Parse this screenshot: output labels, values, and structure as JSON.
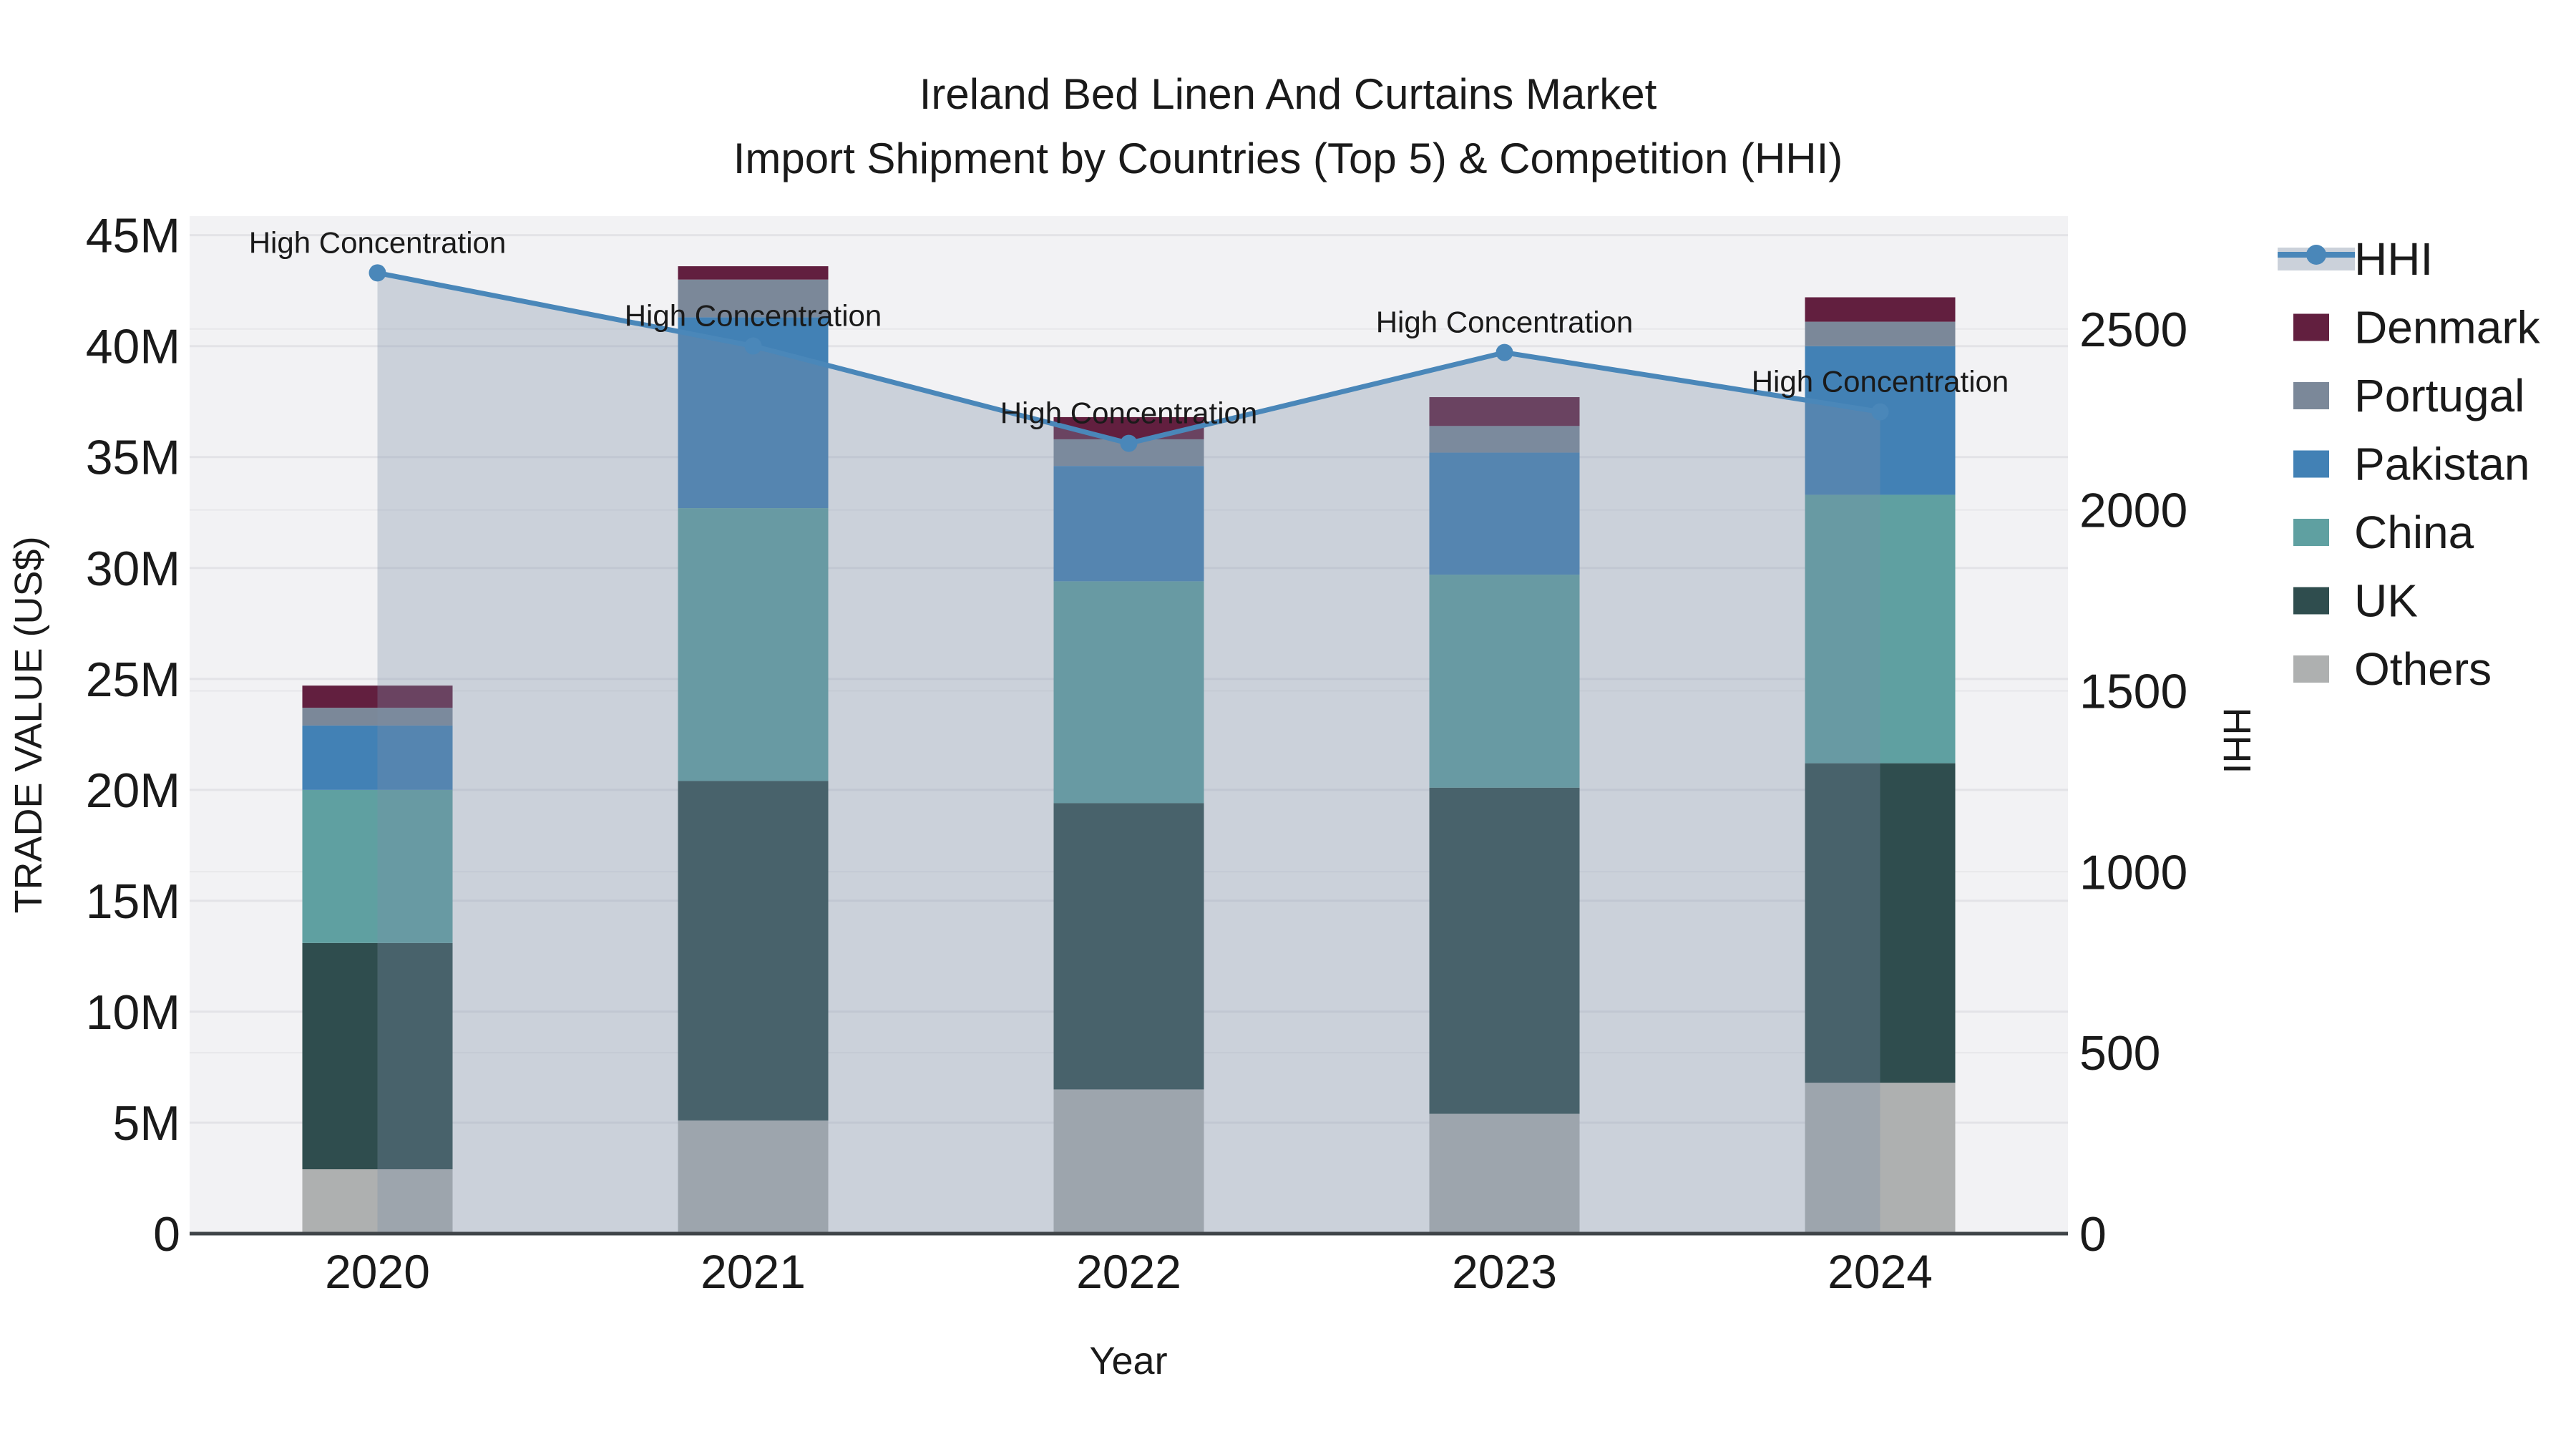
{
  "title": {
    "line1": "Ireland Bed Linen And Curtains Market",
    "line2": "Import Shipment by Countries (Top 5) & Competition (HHI)"
  },
  "axes": {
    "xlabel": "Year",
    "ylabel_left": "TRADE VALUE (US$)",
    "ylabel_right": "HHI",
    "y_left_tick_labels": [
      "0",
      "5M",
      "10M",
      "15M",
      "20M",
      "25M",
      "30M",
      "35M",
      "40M",
      "45M"
    ],
    "y_left_tick_values": [
      0,
      5,
      10,
      15,
      20,
      25,
      30,
      35,
      40,
      45
    ],
    "y_right_tick_labels": [
      "0",
      "500",
      "1000",
      "1500",
      "2000",
      "2500"
    ],
    "y_right_tick_values": [
      0,
      500,
      1000,
      1500,
      2000,
      2500
    ]
  },
  "chart_data": {
    "type": "bar",
    "subtype": "stacked-bars-with-line-overlay",
    "categories": [
      "2020",
      "2021",
      "2022",
      "2023",
      "2024"
    ],
    "value_unit_left": "Trade value, millions of US$",
    "series": [
      {
        "name": "Others",
        "color": "#aeb0b0",
        "values": [
          2.9,
          5.1,
          6.5,
          5.4,
          6.8
        ]
      },
      {
        "name": "UK",
        "color": "#2f4d4e",
        "values": [
          10.2,
          15.3,
          12.9,
          14.7,
          14.4
        ]
      },
      {
        "name": "China",
        "color": "#5fa0a1",
        "values": [
          6.9,
          12.3,
          10.0,
          9.6,
          12.1
        ]
      },
      {
        "name": "Pakistan",
        "color": "#4281b5",
        "values": [
          2.9,
          8.6,
          5.2,
          5.5,
          6.7
        ]
      },
      {
        "name": "Portugal",
        "color": "#7b8899",
        "values": [
          0.8,
          1.7,
          1.2,
          1.2,
          1.1
        ]
      },
      {
        "name": "Denmark",
        "color": "#621f3f",
        "values": [
          1.0,
          0.6,
          1.0,
          1.3,
          1.1
        ]
      }
    ],
    "stack_totals": [
      24.7,
      43.6,
      36.8,
      37.7,
      42.2
    ],
    "line": {
      "name": "HHI",
      "axis": "right",
      "color": "#4a87b9",
      "fill_color": "rgba(124,143,167,0.33)",
      "values": [
        2655,
        2453,
        2184,
        2435,
        2271
      ]
    },
    "annotations": [
      "High Concentration",
      "High Concentration",
      "High Concentration",
      "High Concentration",
      "High Concentration"
    ],
    "ylim_left": [
      0,
      45.86
    ],
    "ylim_right": [
      0,
      2812
    ],
    "grid": true,
    "legend_position": "right"
  },
  "legend": {
    "items": [
      {
        "label": "HHI",
        "type": "line",
        "color": "#4a87b9",
        "band_color": "#cbd1da"
      },
      {
        "label": "Denmark",
        "type": "swatch",
        "color": "#621f3f"
      },
      {
        "label": "Portugal",
        "type": "swatch",
        "color": "#7b8899"
      },
      {
        "label": "Pakistan",
        "type": "swatch",
        "color": "#4281b5"
      },
      {
        "label": "China",
        "type": "swatch",
        "color": "#5fa0a1"
      },
      {
        "label": "UK",
        "type": "swatch",
        "color": "#2f4d4e"
      },
      {
        "label": "Others",
        "type": "swatch",
        "color": "#aeb0b0"
      }
    ]
  },
  "colors": {
    "plot_bg": "#f2f2f4",
    "grid": "#e3e3e7",
    "axis_line": "#3f4448",
    "text": "#1a1a1a"
  }
}
